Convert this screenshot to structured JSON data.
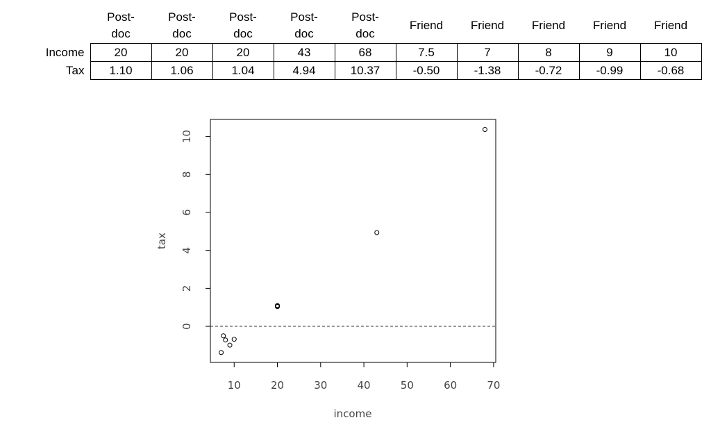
{
  "table": {
    "headers": [
      "Post-\ndoc",
      "Post-\ndoc",
      "Post-\ndoc",
      "Post-\ndoc",
      "Post-\ndoc",
      "Friend",
      "Friend",
      "Friend",
      "Friend",
      "Friend"
    ],
    "rows": [
      {
        "label": "Income",
        "values": [
          "20",
          "20",
          "20",
          "43",
          "68",
          "7.5",
          "7",
          "8",
          "9",
          "10"
        ]
      },
      {
        "label": "Tax",
        "values": [
          "1.10",
          "1.06",
          "1.04",
          "4.94",
          "10.37",
          "-0.50",
          "-1.38",
          "-0.72",
          "-0.99",
          "-0.68"
        ]
      }
    ]
  },
  "chart_data": {
    "type": "scatter",
    "xlabel": "income",
    "ylabel": "tax",
    "xlim": [
      4.5,
      70.5
    ],
    "ylim": [
      -1.9,
      10.9
    ],
    "xticks": [
      10,
      20,
      30,
      40,
      50,
      60,
      70
    ],
    "yticks": [
      0,
      2,
      4,
      6,
      8,
      10
    ],
    "reference_line": {
      "y": 0,
      "style": "dashed"
    },
    "grid": false,
    "x": [
      20,
      20,
      20,
      43,
      68,
      7.5,
      7,
      8,
      9,
      10
    ],
    "y": [
      1.1,
      1.06,
      1.04,
      4.94,
      10.37,
      -0.5,
      -1.38,
      -0.72,
      -0.99,
      -0.68
    ],
    "point_color": "#000000"
  }
}
